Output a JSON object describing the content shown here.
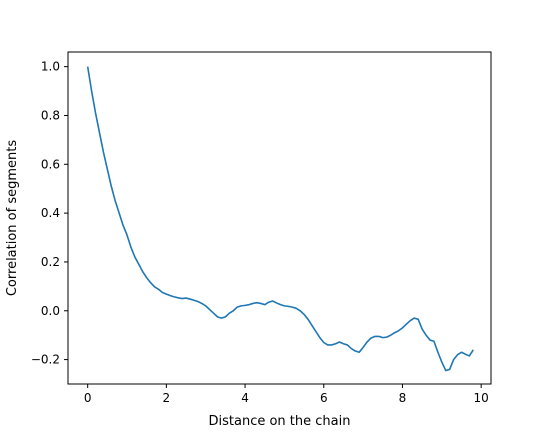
{
  "chart_data": {
    "type": "line",
    "title": "",
    "xlabel": "Distance on the chain",
    "ylabel": "Correlation of segments",
    "xlim": [
      -0.5,
      10.25
    ],
    "ylim": [
      -0.3,
      1.06
    ],
    "xticks": [
      0,
      2,
      4,
      6,
      8,
      10
    ],
    "yticks": [
      -0.2,
      0.0,
      0.2,
      0.4,
      0.6,
      0.8,
      1.0
    ],
    "xtick_labels": [
      "0",
      "2",
      "4",
      "6",
      "8",
      "10"
    ],
    "ytick_labels": [
      "−0.2",
      "0.0",
      "0.2",
      "0.4",
      "0.6",
      "0.8",
      "1.0"
    ],
    "grid": false,
    "line_color": "#1f77b4",
    "series": [
      {
        "x": [
          0.0,
          0.1,
          0.2,
          0.3,
          0.4,
          0.5,
          0.6,
          0.7,
          0.8,
          0.9,
          1.0,
          1.1,
          1.2,
          1.3,
          1.4,
          1.5,
          1.6,
          1.7,
          1.8,
          1.9,
          2.0,
          2.1,
          2.2,
          2.3,
          2.4,
          2.5,
          2.6,
          2.7,
          2.8,
          2.9,
          3.0,
          3.1,
          3.2,
          3.3,
          3.4,
          3.5,
          3.6,
          3.7,
          3.8,
          3.9,
          4.0,
          4.1,
          4.2,
          4.3,
          4.4,
          4.5,
          4.6,
          4.7,
          4.8,
          4.9,
          5.0,
          5.1,
          5.2,
          5.3,
          5.4,
          5.5,
          5.6,
          5.7,
          5.8,
          5.9,
          6.0,
          6.1,
          6.2,
          6.3,
          6.4,
          6.5,
          6.6,
          6.7,
          6.8,
          6.9,
          7.0,
          7.1,
          7.2,
          7.3,
          7.4,
          7.5,
          7.6,
          7.7,
          7.8,
          7.9,
          8.0,
          8.1,
          8.2,
          8.3,
          8.4,
          8.5,
          8.6,
          8.7,
          8.8,
          8.9,
          9.0,
          9.1,
          9.2,
          9.3,
          9.4,
          9.5,
          9.6,
          9.7,
          9.8
        ],
        "values": [
          1.0,
          0.9,
          0.81,
          0.73,
          0.65,
          0.58,
          0.51,
          0.45,
          0.4,
          0.35,
          0.31,
          0.26,
          0.22,
          0.19,
          0.16,
          0.135,
          0.115,
          0.098,
          0.088,
          0.075,
          0.068,
          0.062,
          0.057,
          0.053,
          0.05,
          0.052,
          0.048,
          0.043,
          0.038,
          0.03,
          0.02,
          0.005,
          -0.01,
          -0.025,
          -0.03,
          -0.025,
          -0.01,
          0.0,
          0.015,
          0.02,
          0.022,
          0.025,
          0.03,
          0.033,
          0.03,
          0.025,
          0.035,
          0.04,
          0.032,
          0.025,
          0.02,
          0.018,
          0.015,
          0.01,
          0.0,
          -0.015,
          -0.035,
          -0.06,
          -0.085,
          -0.11,
          -0.13,
          -0.14,
          -0.14,
          -0.135,
          -0.128,
          -0.135,
          -0.14,
          -0.155,
          -0.165,
          -0.17,
          -0.15,
          -0.128,
          -0.112,
          -0.105,
          -0.105,
          -0.11,
          -0.108,
          -0.1,
          -0.09,
          -0.082,
          -0.07,
          -0.055,
          -0.04,
          -0.03,
          -0.035,
          -0.075,
          -0.1,
          -0.12,
          -0.125,
          -0.17,
          -0.21,
          -0.245,
          -0.24,
          -0.2,
          -0.18,
          -0.17,
          -0.178,
          -0.185,
          -0.16
        ]
      }
    ]
  }
}
